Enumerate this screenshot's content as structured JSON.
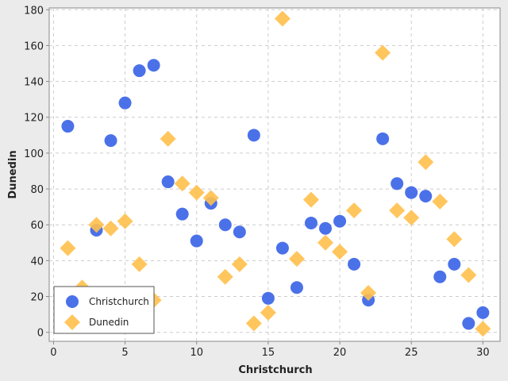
{
  "chart_data": {
    "type": "scatter",
    "title": "",
    "xlabel": "Christchurch",
    "ylabel": "Dunedin",
    "xlim": [
      -0.3,
      31.2
    ],
    "ylim": [
      -5,
      181
    ],
    "xticks": [
      0,
      5,
      10,
      15,
      20,
      25,
      30
    ],
    "yticks": [
      0,
      20,
      40,
      60,
      80,
      100,
      120,
      140,
      160,
      180
    ],
    "grid": true,
    "legend_position": "bottom-left",
    "series": [
      {
        "name": "Christchurch",
        "color": "#4169e8",
        "marker": "circle",
        "points": [
          [
            1,
            115
          ],
          [
            3,
            57
          ],
          [
            4,
            107
          ],
          [
            5,
            128
          ],
          [
            6,
            146
          ],
          [
            7,
            149
          ],
          [
            8,
            84
          ],
          [
            9,
            66
          ],
          [
            10,
            51
          ],
          [
            11,
            72
          ],
          [
            12,
            60
          ],
          [
            13,
            56
          ],
          [
            14,
            110
          ],
          [
            15,
            19
          ],
          [
            16,
            47
          ],
          [
            17,
            25
          ],
          [
            18,
            61
          ],
          [
            19,
            58
          ],
          [
            20,
            62
          ],
          [
            21,
            38
          ],
          [
            22,
            18
          ],
          [
            23,
            108
          ],
          [
            24,
            83
          ],
          [
            25,
            78
          ],
          [
            26,
            76
          ],
          [
            27,
            31
          ],
          [
            28,
            38
          ],
          [
            29,
            5
          ],
          [
            30,
            11
          ]
        ]
      },
      {
        "name": "Dunedin",
        "color": "#ffc04d",
        "marker": "diamond",
        "points": [
          [
            1,
            47
          ],
          [
            2,
            25
          ],
          [
            3,
            60
          ],
          [
            4,
            58
          ],
          [
            5,
            62
          ],
          [
            6,
            38
          ],
          [
            7,
            18
          ],
          [
            8,
            108
          ],
          [
            9,
            83
          ],
          [
            10,
            78
          ],
          [
            11,
            75
          ],
          [
            12,
            31
          ],
          [
            13,
            38
          ],
          [
            14,
            5
          ],
          [
            15,
            11
          ],
          [
            16,
            175
          ],
          [
            17,
            41
          ],
          [
            18,
            74
          ],
          [
            19,
            50
          ],
          [
            20,
            45
          ],
          [
            21,
            68
          ],
          [
            22,
            22
          ],
          [
            23,
            156
          ],
          [
            24,
            68
          ],
          [
            25,
            64
          ],
          [
            26,
            95
          ],
          [
            27,
            73
          ],
          [
            28,
            52
          ],
          [
            29,
            32
          ],
          [
            30,
            2
          ]
        ]
      }
    ]
  }
}
